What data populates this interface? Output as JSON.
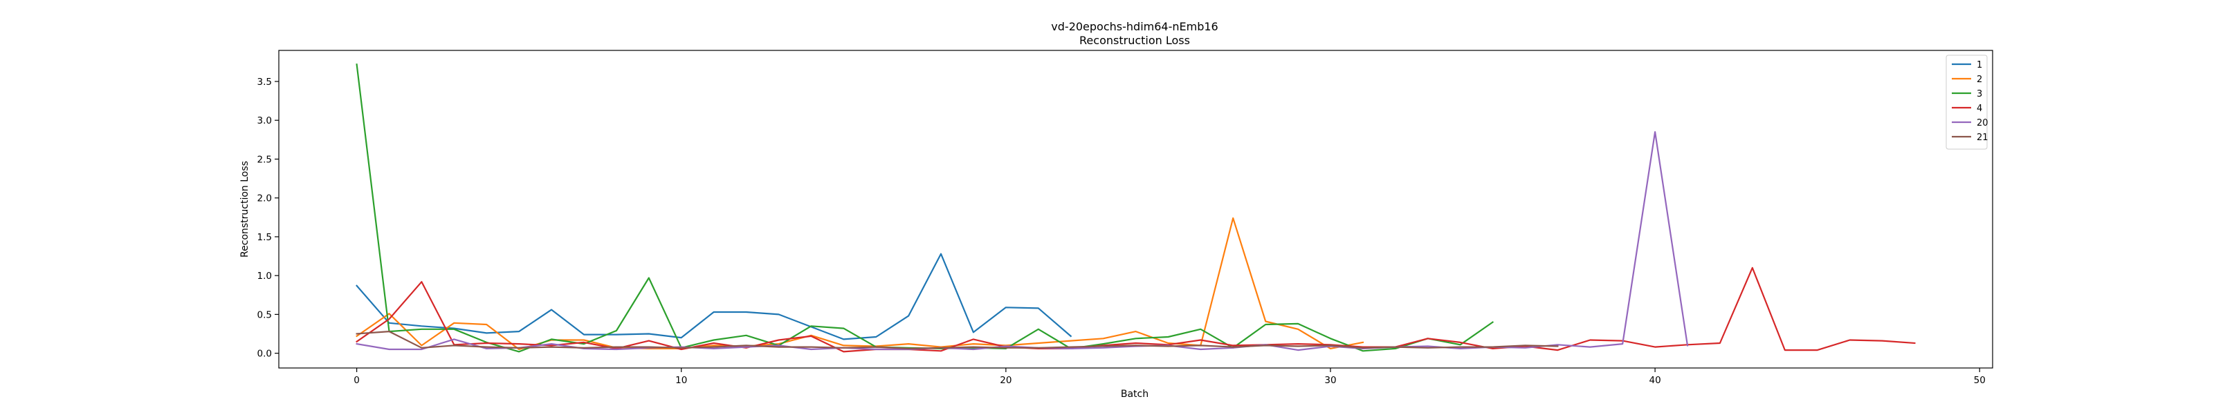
{
  "chart_data": {
    "type": "line",
    "title": "vd-20epochs-hdim64-nEmb16",
    "subtitle": "Reconstruction Loss",
    "xlabel": "Batch",
    "ylabel": "Reconstruction Loss",
    "xlim": [
      -2.4,
      50.4
    ],
    "ylim": [
      -0.19,
      3.9
    ],
    "xticks": [
      0,
      10,
      20,
      30,
      40,
      50
    ],
    "yticks": [
      0.0,
      0.5,
      1.0,
      1.5,
      2.0,
      2.5,
      3.0,
      3.5
    ],
    "grid": false,
    "legend_position": "top-right",
    "series": [
      {
        "name": "1",
        "color": "#1f77b4",
        "x": [
          0,
          1,
          2,
          3,
          4,
          5,
          6,
          7,
          8,
          9,
          10,
          11,
          12,
          13,
          14,
          15,
          16,
          17,
          18,
          19,
          20,
          21,
          22
        ],
        "values": [
          0.87,
          0.39,
          0.35,
          0.32,
          0.26,
          0.28,
          0.56,
          0.24,
          0.24,
          0.25,
          0.2,
          0.53,
          0.53,
          0.5,
          0.34,
          0.18,
          0.21,
          0.48,
          1.28,
          0.27,
          0.59,
          0.58,
          0.22
        ]
      },
      {
        "name": "2",
        "color": "#ff7f0e",
        "x": [
          0,
          1,
          2,
          3,
          4,
          5,
          6,
          7,
          8,
          9,
          10,
          11,
          12,
          13,
          14,
          15,
          16,
          17,
          18,
          19,
          20,
          21,
          22,
          23,
          24,
          25,
          26,
          27,
          28,
          29,
          30,
          31
        ],
        "values": [
          0.22,
          0.51,
          0.1,
          0.39,
          0.37,
          0.05,
          0.17,
          0.17,
          0.07,
          0.06,
          0.06,
          0.1,
          0.09,
          0.12,
          0.23,
          0.1,
          0.09,
          0.12,
          0.08,
          0.12,
          0.1,
          0.13,
          0.16,
          0.19,
          0.28,
          0.13,
          0.1,
          1.74,
          0.41,
          0.31,
          0.06,
          0.14
        ]
      },
      {
        "name": "3",
        "color": "#2ca02c",
        "x": [
          0,
          1,
          2,
          3,
          4,
          5,
          6,
          7,
          8,
          9,
          10,
          11,
          12,
          13,
          14,
          15,
          16,
          17,
          18,
          19,
          20,
          21,
          22,
          23,
          24,
          25,
          26,
          27,
          28,
          29,
          30,
          31,
          32,
          33,
          34,
          35
        ],
        "values": [
          3.72,
          0.28,
          0.31,
          0.31,
          0.14,
          0.02,
          0.18,
          0.12,
          0.29,
          0.97,
          0.07,
          0.17,
          0.23,
          0.1,
          0.35,
          0.32,
          0.08,
          0.07,
          0.06,
          0.07,
          0.06,
          0.31,
          0.06,
          0.12,
          0.19,
          0.21,
          0.31,
          0.07,
          0.37,
          0.38,
          0.19,
          0.03,
          0.06,
          0.19,
          0.11,
          0.4
        ]
      },
      {
        "name": "4",
        "color": "#d62728",
        "x": [
          0,
          1,
          2,
          3,
          4,
          5,
          6,
          7,
          8,
          9,
          10,
          11,
          12,
          13,
          14,
          15,
          16,
          17,
          18,
          19,
          20,
          21,
          22,
          23,
          24,
          25,
          26,
          27,
          28,
          29,
          30,
          31,
          32,
          33,
          34,
          35,
          36,
          37,
          38,
          39,
          40,
          41,
          42,
          43,
          44,
          45,
          46,
          47,
          48
        ],
        "values": [
          0.15,
          0.44,
          0.92,
          0.11,
          0.13,
          0.12,
          0.1,
          0.14,
          0.06,
          0.16,
          0.05,
          0.13,
          0.07,
          0.17,
          0.22,
          0.02,
          0.05,
          0.05,
          0.03,
          0.18,
          0.08,
          0.06,
          0.06,
          0.1,
          0.13,
          0.11,
          0.17,
          0.1,
          0.11,
          0.12,
          0.11,
          0.08,
          0.08,
          0.19,
          0.14,
          0.06,
          0.09,
          0.04,
          0.17,
          0.16,
          0.08,
          0.11,
          0.13,
          1.1,
          0.04,
          0.04,
          0.17,
          0.16,
          0.13
        ]
      },
      {
        "name": "20",
        "color": "#9467bd",
        "x": [
          0,
          1,
          2,
          3,
          4,
          5,
          6,
          7,
          8,
          9,
          10,
          11,
          12,
          13,
          14,
          15,
          16,
          17,
          18,
          19,
          20,
          21,
          22,
          23,
          24,
          25,
          26,
          27,
          28,
          29,
          30,
          31,
          32,
          33,
          34,
          35,
          36,
          37,
          38,
          39,
          40,
          41
        ],
        "values": [
          0.12,
          0.05,
          0.05,
          0.18,
          0.06,
          0.07,
          0.12,
          0.06,
          0.05,
          0.07,
          0.08,
          0.06,
          0.08,
          0.1,
          0.05,
          0.07,
          0.05,
          0.05,
          0.07,
          0.05,
          0.09,
          0.07,
          0.06,
          0.07,
          0.09,
          0.1,
          0.05,
          0.07,
          0.11,
          0.04,
          0.09,
          0.06,
          0.08,
          0.09,
          0.06,
          0.08,
          0.07,
          0.11,
          0.08,
          0.12,
          2.85,
          0.1
        ]
      },
      {
        "name": "21",
        "color": "#8c564b",
        "x": [
          0,
          1,
          2,
          3,
          4,
          5,
          6,
          7,
          8,
          9,
          10,
          11,
          12,
          13,
          14,
          15,
          16,
          17,
          18,
          19,
          20,
          21,
          22,
          23,
          24,
          25,
          26,
          27,
          28,
          29,
          30,
          31,
          32,
          33,
          34,
          35,
          36,
          37
        ],
        "values": [
          0.25,
          0.28,
          0.07,
          0.1,
          0.08,
          0.07,
          0.08,
          0.07,
          0.08,
          0.08,
          0.07,
          0.08,
          0.1,
          0.08,
          0.08,
          0.07,
          0.08,
          0.06,
          0.07,
          0.08,
          0.07,
          0.07,
          0.08,
          0.09,
          0.1,
          0.09,
          0.1,
          0.08,
          0.1,
          0.09,
          0.1,
          0.07,
          0.08,
          0.07,
          0.08,
          0.08,
          0.1,
          0.09
        ]
      }
    ]
  }
}
